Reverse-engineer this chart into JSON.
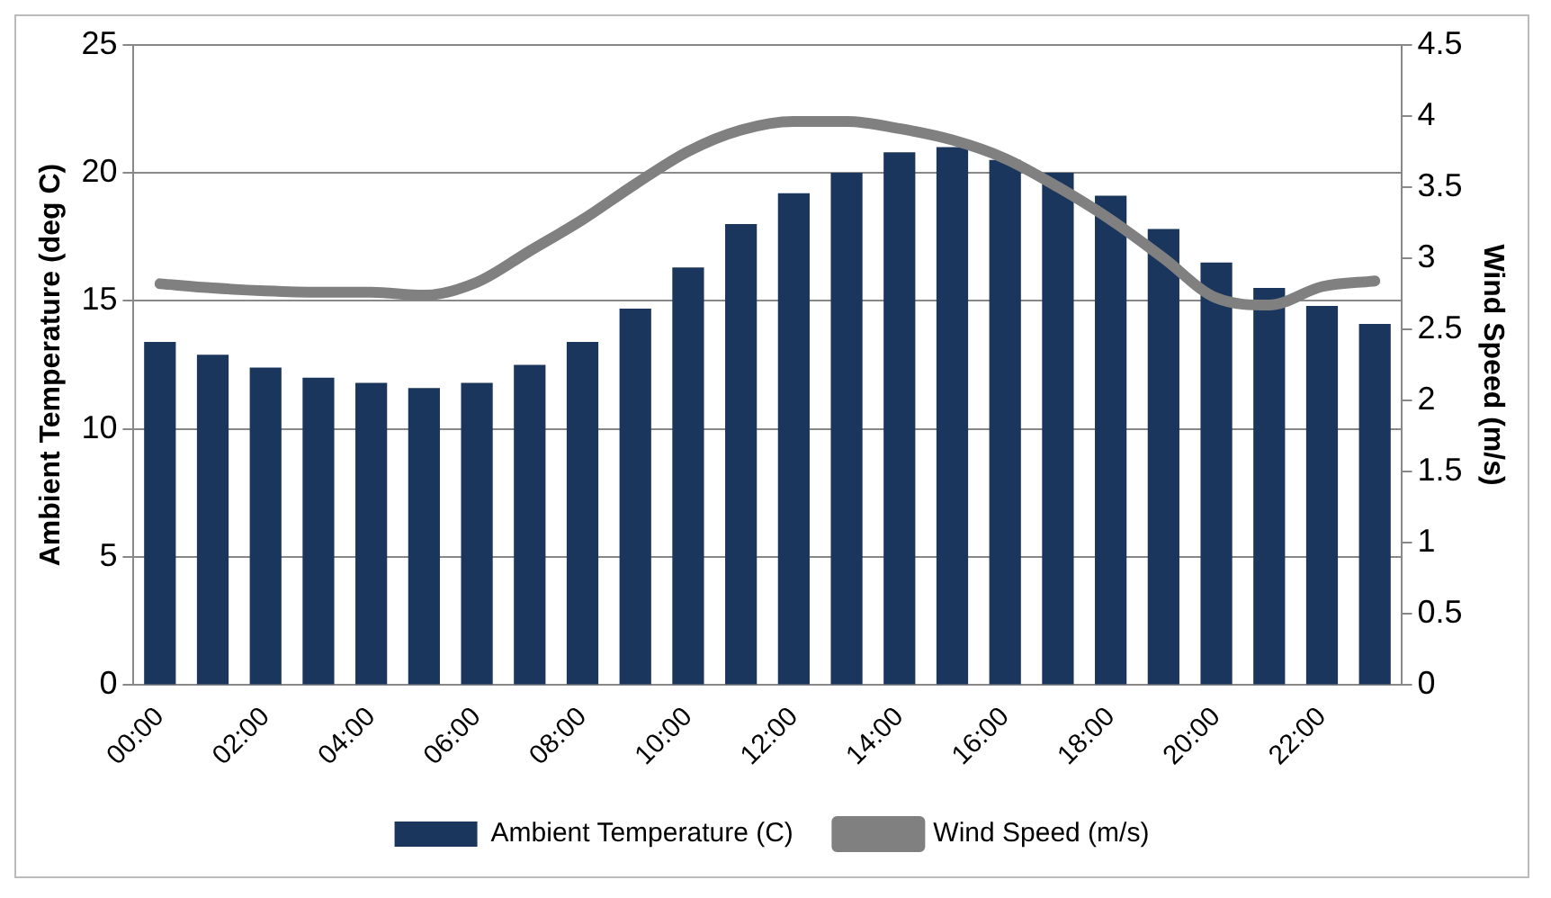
{
  "chart_data": {
    "type": "bar",
    "ylabel": "Ambient Temperature (deg C)",
    "y2label": "Wind Speed (m/s)",
    "categories": [
      "00:00",
      null,
      "02:00",
      null,
      "04:00",
      null,
      "06:00",
      null,
      "08:00",
      null,
      "10:00",
      null,
      "12:00",
      null,
      "14:00",
      null,
      "16:00",
      null,
      "18:00",
      null,
      "20:00",
      null,
      "22:00",
      null
    ],
    "series": [
      {
        "name": "Ambient Temperature (C)",
        "color": "#1b365d",
        "values": [
          13.4,
          12.9,
          12.4,
          12.0,
          11.8,
          11.6,
          11.8,
          12.5,
          13.4,
          14.7,
          16.3,
          18.0,
          19.2,
          20.0,
          20.8,
          21.0,
          20.5,
          20.0,
          19.1,
          17.8,
          16.5,
          15.5,
          14.8,
          14.1
        ]
      },
      {
        "name": "Wind Speed (m/s)",
        "type": "line",
        "axis": "y2",
        "color": "#808080",
        "marker": "none",
        "values": [
          2.82,
          2.79,
          2.77,
          2.76,
          2.76,
          2.74,
          2.83,
          3.05,
          3.27,
          3.52,
          3.75,
          3.9,
          3.96,
          3.96,
          3.91,
          3.83,
          3.7,
          3.5,
          3.27,
          3.0,
          2.72,
          2.67,
          2.8,
          2.84
        ]
      }
    ],
    "ylim": [
      0,
      25
    ],
    "yticks": [
      0,
      5,
      10,
      15,
      20,
      25
    ],
    "y2lim": [
      0,
      4.5
    ],
    "y2ticks": [
      0,
      0.5,
      1,
      1.5,
      2,
      2.5,
      3,
      3.5,
      4,
      4.5
    ],
    "grid": "y",
    "legend": "bottom"
  }
}
